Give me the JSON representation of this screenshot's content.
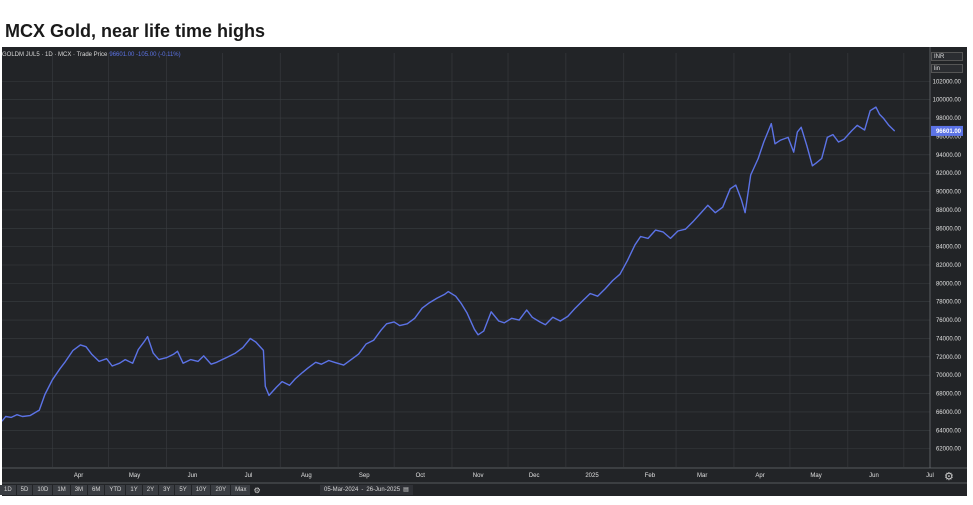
{
  "title": "MCX Gold, near life time highs",
  "legend": {
    "symbol": "GOLDM JUL5 · 1D · MCX · Trade Price",
    "price": "96601.00 -105.00 (-0.11%)"
  },
  "currency": "INR",
  "scale_mode": "lin",
  "last_price_label": "96601.00",
  "toolbar": {
    "timeframes": [
      "1D",
      "5D",
      "10D",
      "1M",
      "3M",
      "6M",
      "YTD",
      "1Y",
      "2Y",
      "3Y",
      "5Y",
      "10Y",
      "20Y",
      "Max"
    ],
    "range_start": "05-Mar-2024",
    "range_sep": "-",
    "range_end": "26-Jun-2025",
    "calendar_icon": "calendar-icon",
    "gear_icon": "gear-icon"
  },
  "colors": {
    "background": "#222427",
    "grid": "#3a3d41",
    "line": "#5c73e6",
    "last_price_bg": "#5c73e6"
  },
  "chart_data": {
    "type": "line",
    "title": "MCX Gold, near life time highs",
    "xlabel": "",
    "ylabel": "",
    "grid": true,
    "x_ticks": [
      "Apr",
      "May",
      "Jun",
      "Jul",
      "Aug",
      "Sep",
      "Oct",
      "Nov",
      "Dec",
      "2025",
      "Feb",
      "Mar",
      "Apr",
      "May",
      "Jun",
      "Jul"
    ],
    "y_ticks": [
      "62000.00",
      "64000.00",
      "66000.00",
      "68000.00",
      "70000.00",
      "72000.00",
      "74000.00",
      "76000.00",
      "78000.00",
      "80000.00",
      "82000.00",
      "84000.00",
      "86000.00",
      "88000.00",
      "90000.00",
      "92000.00",
      "94000.00",
      "96000.00",
      "98000.00",
      "100000.00",
      "102000.00"
    ],
    "ylim": [
      60000,
      104000
    ],
    "xlim": [
      "2024-03-05",
      "2025-07-15"
    ],
    "series": [
      {
        "values": [
          [
            "2024-03-05",
            65000
          ],
          [
            "2024-03-07",
            65500
          ],
          [
            "2024-03-10",
            65400
          ],
          [
            "2024-03-13",
            65700
          ],
          [
            "2024-03-16",
            65500
          ],
          [
            "2024-03-20",
            65600
          ],
          [
            "2024-03-25",
            66200
          ],
          [
            "2024-03-28",
            67900
          ],
          [
            "2024-04-01",
            69500
          ],
          [
            "2024-04-05",
            70700
          ],
          [
            "2024-04-08",
            71500
          ],
          [
            "2024-04-12",
            72700
          ],
          [
            "2024-04-16",
            73300
          ],
          [
            "2024-04-19",
            73100
          ],
          [
            "2024-04-22",
            72300
          ],
          [
            "2024-04-26",
            71500
          ],
          [
            "2024-04-30",
            71800
          ],
          [
            "2024-05-03",
            71000
          ],
          [
            "2024-05-07",
            71300
          ],
          [
            "2024-05-10",
            71700
          ],
          [
            "2024-05-14",
            71300
          ],
          [
            "2024-05-17",
            72800
          ],
          [
            "2024-05-20",
            73600
          ],
          [
            "2024-05-22",
            74200
          ],
          [
            "2024-05-25",
            72400
          ],
          [
            "2024-05-28",
            71700
          ],
          [
            "2024-06-01",
            71900
          ],
          [
            "2024-06-05",
            72300
          ],
          [
            "2024-06-07",
            72600
          ],
          [
            "2024-06-10",
            71300
          ],
          [
            "2024-06-14",
            71700
          ],
          [
            "2024-06-18",
            71500
          ],
          [
            "2024-06-21",
            72100
          ],
          [
            "2024-06-25",
            71200
          ],
          [
            "2024-06-28",
            71400
          ],
          [
            "2024-07-03",
            71900
          ],
          [
            "2024-07-08",
            72400
          ],
          [
            "2024-07-12",
            73000
          ],
          [
            "2024-07-16",
            74000
          ],
          [
            "2024-07-19",
            73600
          ],
          [
            "2024-07-23",
            72700
          ],
          [
            "2024-07-24",
            68800
          ],
          [
            "2024-07-26",
            67800
          ],
          [
            "2024-07-30",
            68700
          ],
          [
            "2024-08-02",
            69300
          ],
          [
            "2024-08-06",
            68900
          ],
          [
            "2024-08-09",
            69600
          ],
          [
            "2024-08-13",
            70300
          ],
          [
            "2024-08-16",
            70800
          ],
          [
            "2024-08-20",
            71400
          ],
          [
            "2024-08-23",
            71200
          ],
          [
            "2024-08-27",
            71600
          ],
          [
            "2024-08-30",
            71400
          ],
          [
            "2024-09-04",
            71100
          ],
          [
            "2024-09-08",
            71700
          ],
          [
            "2024-09-12",
            72300
          ],
          [
            "2024-09-16",
            73400
          ],
          [
            "2024-09-20",
            73800
          ],
          [
            "2024-09-24",
            74900
          ],
          [
            "2024-09-27",
            75600
          ],
          [
            "2024-10-01",
            75800
          ],
          [
            "2024-10-04",
            75400
          ],
          [
            "2024-10-08",
            75600
          ],
          [
            "2024-10-12",
            76200
          ],
          [
            "2024-10-16",
            77300
          ],
          [
            "2024-10-20",
            77900
          ],
          [
            "2024-10-24",
            78400
          ],
          [
            "2024-10-28",
            78800
          ],
          [
            "2024-10-30",
            79100
          ],
          [
            "2024-11-03",
            78600
          ],
          [
            "2024-11-06",
            77800
          ],
          [
            "2024-11-09",
            76800
          ],
          [
            "2024-11-13",
            75000
          ],
          [
            "2024-11-15",
            74400
          ],
          [
            "2024-11-18",
            74800
          ],
          [
            "2024-11-22",
            76900
          ],
          [
            "2024-11-26",
            75900
          ],
          [
            "2024-11-29",
            75700
          ],
          [
            "2024-12-03",
            76200
          ],
          [
            "2024-12-07",
            76000
          ],
          [
            "2024-12-11",
            77100
          ],
          [
            "2024-12-14",
            76300
          ],
          [
            "2024-12-18",
            75800
          ],
          [
            "2024-12-21",
            75500
          ],
          [
            "2024-12-25",
            76300
          ],
          [
            "2024-12-29",
            75900
          ],
          [
            "2025-01-02",
            76400
          ],
          [
            "2025-01-06",
            77300
          ],
          [
            "2025-01-10",
            78100
          ],
          [
            "2025-01-14",
            78900
          ],
          [
            "2025-01-18",
            78600
          ],
          [
            "2025-01-22",
            79400
          ],
          [
            "2025-01-26",
            80300
          ],
          [
            "2025-01-30",
            81000
          ],
          [
            "2025-02-03",
            82500
          ],
          [
            "2025-02-07",
            84200
          ],
          [
            "2025-02-10",
            85100
          ],
          [
            "2025-02-14",
            84900
          ],
          [
            "2025-02-18",
            85800
          ],
          [
            "2025-02-22",
            85600
          ],
          [
            "2025-02-26",
            84900
          ],
          [
            "2025-03-02",
            85700
          ],
          [
            "2025-03-06",
            85900
          ],
          [
            "2025-03-10",
            86700
          ],
          [
            "2025-03-14",
            87600
          ],
          [
            "2025-03-18",
            88500
          ],
          [
            "2025-03-22",
            87700
          ],
          [
            "2025-03-26",
            88300
          ],
          [
            "2025-03-30",
            90300
          ],
          [
            "2025-04-02",
            90700
          ],
          [
            "2025-04-05",
            89100
          ],
          [
            "2025-04-07",
            87700
          ],
          [
            "2025-04-10",
            91800
          ],
          [
            "2025-04-14",
            93600
          ],
          [
            "2025-04-17",
            95400
          ],
          [
            "2025-04-21",
            97400
          ],
          [
            "2025-04-23",
            95200
          ],
          [
            "2025-04-26",
            95600
          ],
          [
            "2025-04-30",
            95900
          ],
          [
            "2025-05-03",
            94300
          ],
          [
            "2025-05-05",
            96500
          ],
          [
            "2025-05-07",
            97000
          ],
          [
            "2025-05-10",
            95000
          ],
          [
            "2025-05-13",
            92800
          ],
          [
            "2025-05-15",
            93100
          ],
          [
            "2025-05-18",
            93600
          ],
          [
            "2025-05-21",
            95900
          ],
          [
            "2025-05-24",
            96200
          ],
          [
            "2025-05-27",
            95400
          ],
          [
            "2025-05-30",
            95700
          ],
          [
            "2025-06-03",
            96600
          ],
          [
            "2025-06-06",
            97200
          ],
          [
            "2025-06-10",
            96700
          ],
          [
            "2025-06-13",
            98800
          ],
          [
            "2025-06-16",
            99200
          ],
          [
            "2025-06-18",
            98400
          ],
          [
            "2025-06-20",
            98000
          ],
          [
            "2025-06-23",
            97200
          ],
          [
            "2025-06-26",
            96601
          ]
        ]
      }
    ]
  }
}
